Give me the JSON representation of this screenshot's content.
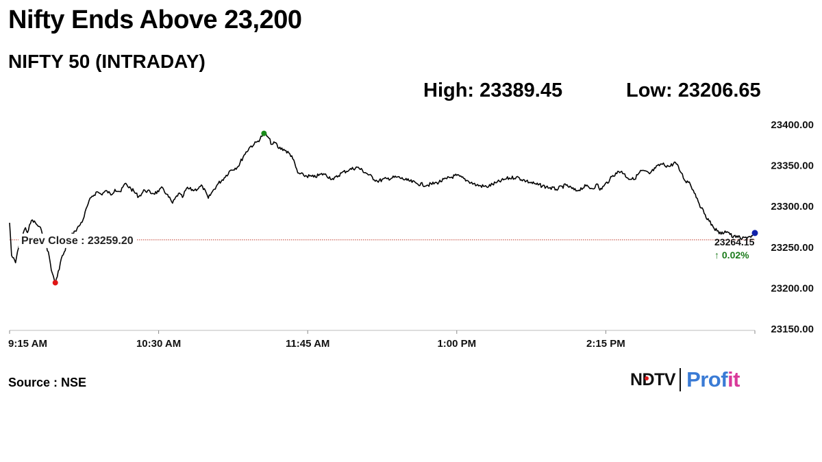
{
  "headline": "Nifty Ends Above 23,200",
  "subtitle": "NIFTY 50 (INTRADAY)",
  "stats": {
    "high": "High: 23389.45",
    "low": "Low: 23206.65"
  },
  "source": "Source : NSE",
  "logo": {
    "ndtv": "NDTV",
    "profit": "Prof",
    "profit_tail": "it"
  },
  "colors": {
    "line": "#000000",
    "prev_close_line": "#c0392b",
    "high_marker": "#1a8a1a",
    "low_marker": "#e01515",
    "last_marker": "#1122aa",
    "change_text": "#1a7a1a",
    "axis": "#bbbbbb",
    "logo_blue": "#3a7bd5",
    "logo_pink": "#d9399a",
    "logo_dot": "#e0191b"
  },
  "chart_data": {
    "type": "line",
    "title": "NIFTY 50 (INTRADAY)",
    "xlabel": "",
    "ylabel": "",
    "y_axis_position": "right",
    "ylim": [
      23150,
      23400
    ],
    "y_ticks": [
      23400,
      23350,
      23300,
      23250,
      23200,
      23150
    ],
    "y_tick_labels": [
      "23400.00",
      "23350.00",
      "23300.00",
      "23250.00",
      "23200.00",
      "23150.00"
    ],
    "x_tick_minutes": [
      555,
      630,
      705,
      780,
      855
    ],
    "x_tick_labels": [
      "9:15 AM",
      "10:30 AM",
      "11:45 AM",
      "1:00 PM",
      "2:15 PM"
    ],
    "xlim_minutes": [
      555,
      930
    ],
    "prev_close": {
      "value": 23259.2,
      "label": "Prev Close : 23259.20"
    },
    "high_point": {
      "minute": 683,
      "value": 23389.45
    },
    "low_point": {
      "minute": 578,
      "value": 23206.65
    },
    "last_point": {
      "minute": 929,
      "value": 23264.15,
      "label": "23264.15",
      "change_label": "↑ 0.02%"
    },
    "grid": false,
    "legend": "none",
    "series": [
      {
        "x_minutes": [
          555,
          556,
          558,
          559,
          561,
          563,
          564,
          566,
          568,
          569,
          571,
          573,
          575,
          576,
          577,
          578,
          579,
          581,
          583,
          584,
          586,
          588,
          590,
          592,
          594,
          596,
          599,
          601,
          604,
          606,
          608,
          611,
          613,
          616,
          620,
          623,
          627,
          630,
          632,
          634,
          637,
          640,
          642,
          644,
          648,
          652,
          655,
          657,
          660,
          663,
          666,
          670,
          673,
          676,
          678,
          680,
          682,
          683,
          685,
          687,
          689,
          690,
          693,
          697,
          700,
          703,
          708,
          713,
          718,
          722,
          726,
          730,
          735,
          740,
          745,
          750,
          755,
          760,
          765,
          770,
          775,
          780,
          785,
          790,
          795,
          800,
          805,
          810,
          815,
          820,
          825,
          830,
          835,
          840,
          845,
          848,
          851,
          852,
          854,
          857,
          860,
          863,
          866,
          869,
          873,
          877,
          880,
          883,
          887,
          890,
          893,
          895,
          897,
          899,
          901,
          903,
          905,
          907,
          909,
          911,
          913,
          915,
          917,
          919,
          921,
          923,
          925,
          927,
          929
        ],
        "values": [
          23280,
          23240,
          23231,
          23245,
          23262,
          23274,
          23268,
          23283,
          23280,
          23277,
          23271,
          23258,
          23238,
          23222,
          23215,
          23206.65,
          23214,
          23236,
          23246,
          23258,
          23264,
          23270,
          23276,
          23284,
          23300,
          23311,
          23318,
          23315,
          23319,
          23314,
          23321,
          23318,
          23328,
          23322,
          23312,
          23320,
          23316,
          23318,
          23323,
          23315,
          23304,
          23316,
          23311,
          23322,
          23320,
          23325,
          23310,
          23318,
          23328,
          23335,
          23344,
          23349,
          23363,
          23373,
          23376,
          23380,
          23386,
          23389.45,
          23385,
          23376,
          23378,
          23372,
          23370,
          23362,
          23341,
          23338,
          23336,
          23340,
          23333,
          23341,
          23345,
          23348,
          23340,
          23331,
          23334,
          23336,
          23332,
          23328,
          23326,
          23329,
          23334,
          23338,
          23332,
          23326,
          23324,
          23329,
          23334,
          23336,
          23331,
          23327,
          23324,
          23321,
          23326,
          23319,
          23325,
          23322,
          23327,
          23320,
          23325,
          23333,
          23341,
          23343,
          23335,
          23333,
          23344,
          23340,
          23347,
          23352,
          23349,
          23354,
          23341,
          23331,
          23330,
          23320,
          23310,
          23298,
          23290,
          23282,
          23275,
          23270,
          23266,
          23270,
          23268,
          23262,
          23264,
          23260,
          23262,
          23263,
          23264.15
        ]
      }
    ]
  }
}
